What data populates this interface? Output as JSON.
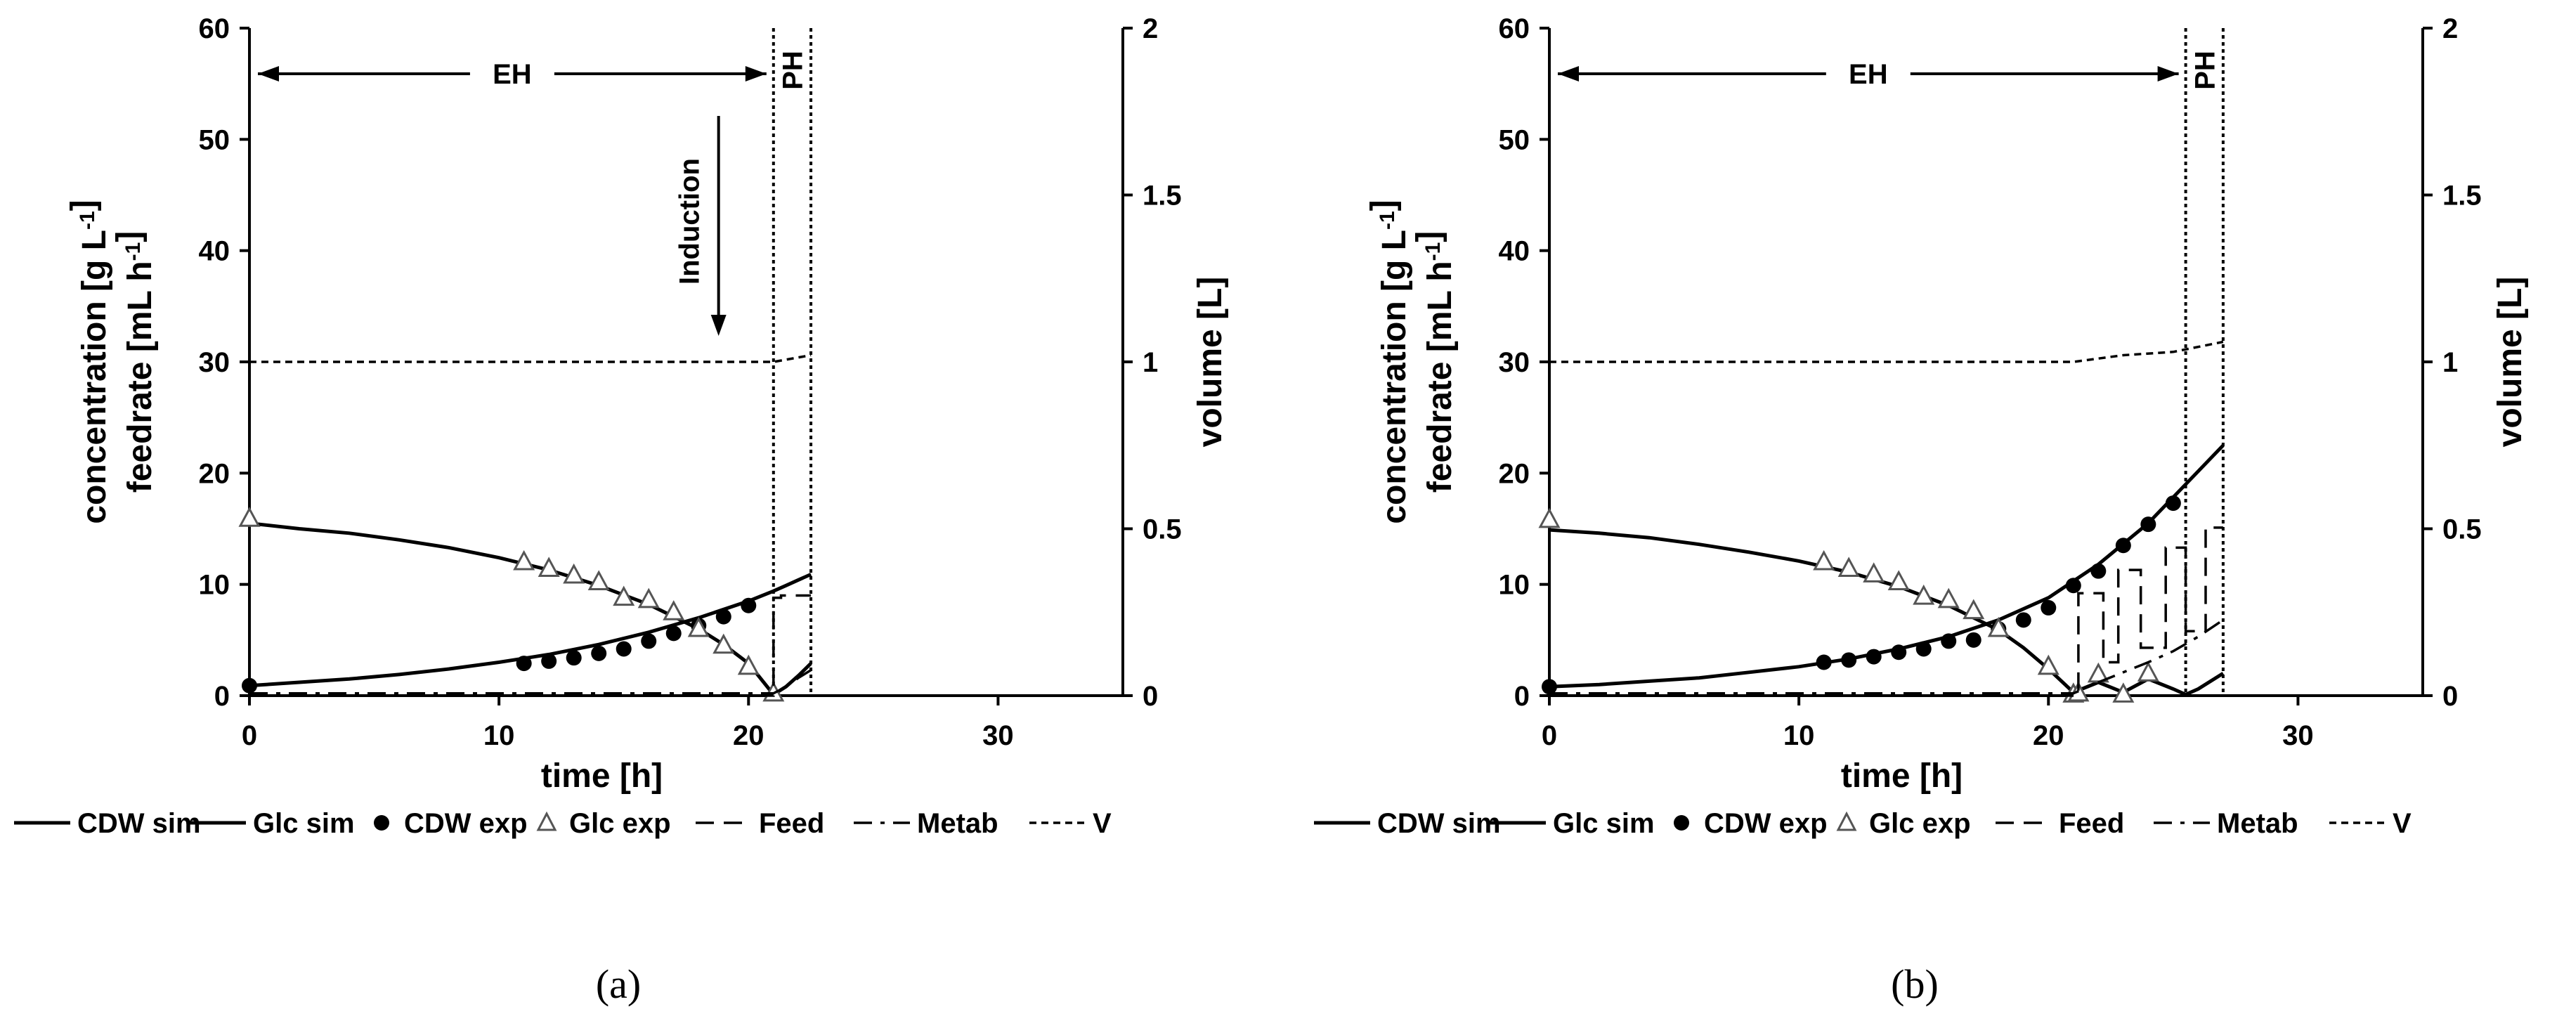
{
  "chart_data": [
    {
      "type": "line",
      "panel_label": "(a)",
      "xlabel": "time [h]",
      "ylabel_line1": "concentration [g L-1]",
      "ylabel_line2": "feedrate [mL h-1]",
      "y2label": "volume [L]",
      "xlim": [
        0,
        35
      ],
      "ylim": [
        0,
        60
      ],
      "y2lim": [
        0,
        2
      ],
      "x_ticks": [
        0,
        10,
        20,
        30
      ],
      "y_ticks": [
        0,
        10,
        20,
        30,
        40,
        50,
        60
      ],
      "y2_ticks": [
        "0",
        "0.5",
        "1",
        "1.5",
        "2"
      ],
      "phases": {
        "eh_end": 21,
        "ph_end": 22.5
      },
      "annotations": {
        "eh": "EH",
        "ph": "PH",
        "induction": "Induction",
        "induction_x": 18.8
      },
      "series": [
        {
          "name": "CDW sim",
          "style": "solid",
          "x": [
            0,
            2,
            4,
            6,
            8,
            10,
            12,
            14,
            16,
            18,
            20,
            21,
            21.5,
            22,
            22.5
          ],
          "y": [
            0.9,
            1.2,
            1.5,
            1.9,
            2.4,
            3.0,
            3.7,
            4.6,
            5.7,
            7.0,
            8.5,
            9.4,
            9.9,
            10.4,
            10.9
          ]
        },
        {
          "name": "Glc sim",
          "style": "solid",
          "x": [
            0,
            2,
            4,
            6,
            8,
            10,
            12,
            14,
            16,
            18,
            19,
            20,
            21,
            21.5,
            22,
            22.5
          ],
          "y": [
            15.5,
            15.0,
            14.6,
            14.0,
            13.3,
            12.4,
            11.3,
            9.9,
            8.2,
            6.0,
            4.6,
            2.9,
            0.1,
            0.8,
            1.8,
            2.9
          ]
        },
        {
          "name": "CDW exp",
          "style": "markers",
          "marker": "circle",
          "x": [
            0,
            11,
            12,
            13,
            14,
            15,
            16,
            17,
            18,
            19,
            20
          ],
          "y": [
            0.9,
            2.9,
            3.1,
            3.4,
            3.8,
            4.2,
            4.9,
            5.6,
            6.3,
            7.1,
            8.1
          ]
        },
        {
          "name": "Glc exp",
          "style": "markers",
          "marker": "triangle",
          "x": [
            0,
            11,
            12,
            13,
            14,
            15,
            16,
            17,
            18,
            19,
            20,
            21
          ],
          "y": [
            15.9,
            12.0,
            11.4,
            10.8,
            10.2,
            8.8,
            8.6,
            7.5,
            6.0,
            4.5,
            2.6,
            0.2
          ]
        },
        {
          "name": "Feed",
          "style": "dashed",
          "x": [
            0,
            21,
            21,
            21.3,
            21.3,
            22.5
          ],
          "y": [
            0,
            0,
            8.8,
            8.8,
            9.0,
            9.0
          ]
        },
        {
          "name": "Metab",
          "style": "dashdot",
          "x": [
            0,
            21,
            21.5,
            22,
            22.5
          ],
          "y": [
            0.2,
            0.2,
            0.8,
            1.6,
            2.3
          ]
        },
        {
          "name": "V",
          "style": "dotted",
          "axis": "y2",
          "x": [
            0,
            21,
            22.5
          ],
          "y": [
            1.0,
            1.0,
            1.02
          ]
        }
      ],
      "legend": [
        "CDW sim",
        "Glc sim",
        "CDW exp",
        "Glc exp",
        "Feed",
        "Metab",
        "V"
      ]
    },
    {
      "type": "line",
      "panel_label": "(b)",
      "xlabel": "time [h]",
      "ylabel_line1": "concentration [g L-1]",
      "ylabel_line2": "feedrate [mL h-1]",
      "y2label": "volume [L]",
      "xlim": [
        0,
        35
      ],
      "ylim": [
        0,
        60
      ],
      "y2lim": [
        0,
        2
      ],
      "x_ticks": [
        0,
        10,
        20,
        30
      ],
      "y_ticks": [
        0,
        10,
        20,
        30,
        40,
        50,
        60
      ],
      "y2_ticks": [
        "0",
        "0.5",
        "1",
        "1.5",
        "2"
      ],
      "phases": {
        "eh_end": 25.5,
        "ph_end": 27
      },
      "annotations": {
        "eh": "EH",
        "ph": "PH"
      },
      "series": [
        {
          "name": "CDW sim",
          "style": "solid",
          "x": [
            0,
            2,
            4,
            6,
            8,
            10,
            12,
            14,
            16,
            18,
            20,
            22,
            24,
            25.5,
            27
          ],
          "y": [
            0.8,
            1.0,
            1.3,
            1.6,
            2.1,
            2.6,
            3.3,
            4.2,
            5.3,
            6.8,
            8.8,
            11.8,
            15.5,
            19.0,
            22.5
          ]
        },
        {
          "name": "Glc sim",
          "style": "solid",
          "x": [
            0,
            2,
            4,
            6,
            8,
            10,
            12,
            14,
            16,
            18,
            19,
            20,
            21,
            22,
            23,
            24,
            25,
            25.5,
            26,
            27
          ],
          "y": [
            14.9,
            14.6,
            14.2,
            13.6,
            12.9,
            12.1,
            11.1,
            9.8,
            8.1,
            5.9,
            4.3,
            2.4,
            0.3,
            1.2,
            0.3,
            1.5,
            0.6,
            0.1,
            0.6,
            2.0
          ]
        },
        {
          "name": "CDW exp",
          "style": "markers",
          "marker": "circle",
          "x": [
            0,
            11,
            12,
            13,
            14,
            15,
            16,
            17,
            18,
            19,
            20,
            21,
            22,
            23,
            24,
            25
          ],
          "y": [
            0.8,
            3.0,
            3.2,
            3.5,
            3.9,
            4.2,
            4.9,
            5.0,
            6.0,
            6.8,
            7.9,
            9.9,
            11.2,
            13.5,
            15.4,
            17.3
          ]
        },
        {
          "name": "Glc exp",
          "style": "markers",
          "marker": "triangle",
          "x": [
            0,
            11,
            12,
            13,
            14,
            15,
            16,
            17,
            18,
            20,
            21,
            21.2,
            22,
            23,
            24
          ],
          "y": [
            15.8,
            12.0,
            11.4,
            10.9,
            10.2,
            8.9,
            8.6,
            7.6,
            6.0,
            2.6,
            0.1,
            0.2,
            1.9,
            0.1,
            2.0
          ]
        },
        {
          "name": "Feed",
          "style": "dashed",
          "x": [
            0,
            21.2,
            21.2,
            22.2,
            22.2,
            22.8,
            22.8,
            23.7,
            23.7,
            24.7,
            24.7,
            25.5,
            25.5,
            26.3,
            26.3,
            27
          ],
          "y": [
            0,
            0,
            9.2,
            9.2,
            3.0,
            3.0,
            11.3,
            11.3,
            4.3,
            4.3,
            13.3,
            13.3,
            5.8,
            5.8,
            15.1,
            15.1
          ]
        },
        {
          "name": "Metab",
          "style": "dashdot",
          "x": [
            0,
            21,
            22,
            23,
            24,
            25,
            26,
            27
          ],
          "y": [
            0.2,
            0.2,
            1.2,
            2.1,
            3.0,
            4.0,
            5.3,
            6.8
          ]
        },
        {
          "name": "V",
          "style": "dotted",
          "axis": "y2",
          "x": [
            0,
            21,
            23,
            25,
            27
          ],
          "y": [
            1.0,
            1.0,
            1.02,
            1.03,
            1.06
          ]
        }
      ],
      "legend": [
        "CDW sim",
        "Glc sim",
        "CDW exp",
        "Glc exp",
        "Feed",
        "Metab",
        "V"
      ]
    }
  ]
}
